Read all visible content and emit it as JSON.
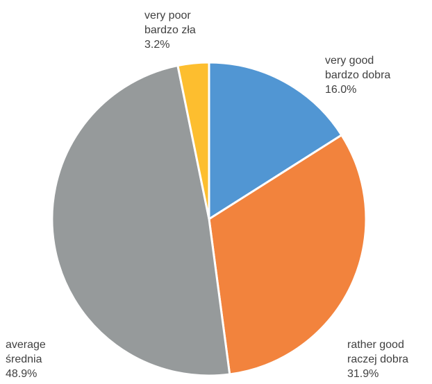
{
  "chart_data": {
    "type": "pie",
    "slices": [
      {
        "label_en": "very good",
        "label_pl": "bardzo dobra",
        "value": 16.0,
        "value_text": "16.0%",
        "color": "#5196D3"
      },
      {
        "label_en": "rather good",
        "label_pl": "raczej dobra",
        "value": 31.9,
        "value_text": "31.9%",
        "color": "#F2833D"
      },
      {
        "label_en": "average",
        "label_pl": "średnia",
        "value": 48.9,
        "value_text": "48.9%",
        "color": "#969A9B"
      },
      {
        "label_en": "very poor",
        "label_pl": "bardzo zła",
        "value": 3.2,
        "value_text": "3.2%",
        "color": "#FDBE2F"
      }
    ]
  }
}
